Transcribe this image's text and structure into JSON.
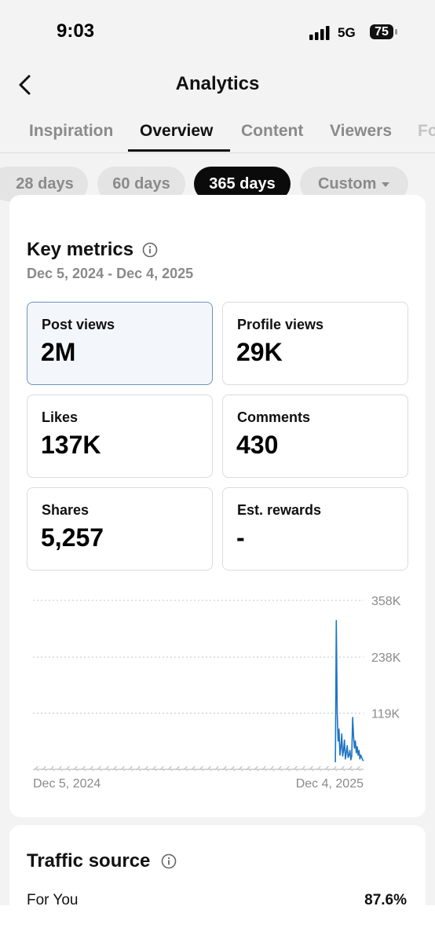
{
  "status_bar": {
    "time": "9:03",
    "network": "5G",
    "battery": "75"
  },
  "header": {
    "title": "Analytics"
  },
  "tabs": [
    "Inspiration",
    "Overview",
    "Content",
    "Viewers",
    "Followers"
  ],
  "date_ranges": [
    "28 days",
    "60 days",
    "365 days",
    "Custom"
  ],
  "key_metrics": {
    "title": "Key metrics",
    "period": "Dec 5, 2024 - Dec 4, 2025",
    "cards": [
      {
        "label": "Post views",
        "value": "2M"
      },
      {
        "label": "Profile views",
        "value": "29K"
      },
      {
        "label": "Likes",
        "value": "137K"
      },
      {
        "label": "Comments",
        "value": "430"
      },
      {
        "label": "Shares",
        "value": "5,257"
      },
      {
        "label": "Est. rewards",
        "value": "-"
      }
    ]
  },
  "chart_data": {
    "type": "line",
    "color": "#1f74c4",
    "grid": true,
    "ylim": [
      0,
      358000
    ],
    "yticks": [
      {
        "value": 119000,
        "label": "119K"
      },
      {
        "value": 238000,
        "label": "238K"
      },
      {
        "value": 358000,
        "label": "358K"
      }
    ],
    "categories": [
      "Dec 5, 2024",
      null,
      null,
      null,
      null,
      null,
      null,
      null,
      null,
      null,
      null,
      null,
      null,
      null,
      null,
      null,
      null,
      null,
      null,
      null,
      null,
      null,
      null,
      null,
      null,
      null,
      null,
      null,
      null,
      null,
      null,
      null,
      null,
      null,
      null,
      null,
      null,
      null,
      null,
      null,
      null,
      null,
      null,
      null,
      null,
      null,
      null,
      null,
      null,
      null,
      null,
      null,
      null,
      null,
      null,
      null,
      null,
      null,
      null,
      null,
      null,
      null,
      null,
      null,
      null,
      null,
      null,
      null,
      null,
      null,
      null,
      null,
      null,
      null,
      null,
      null,
      null,
      null,
      null,
      null,
      null,
      null,
      null,
      null,
      null,
      null,
      null,
      null,
      null,
      null,
      null,
      null,
      null,
      null,
      null,
      null,
      null,
      null,
      null,
      null,
      null,
      null,
      null,
      null,
      null,
      null,
      null,
      null,
      null,
      null,
      null,
      null,
      null,
      null,
      null,
      null,
      null,
      null,
      null,
      null,
      null,
      null,
      null,
      null,
      null,
      null,
      null,
      null,
      null,
      null,
      null,
      null,
      null,
      null,
      null,
      null,
      null,
      null,
      null,
      null,
      null,
      null,
      null,
      null,
      null,
      null,
      null,
      null,
      null,
      null,
      null,
      null,
      null,
      null,
      null,
      null,
      null,
      null,
      null,
      null,
      null,
      null,
      null,
      null,
      null,
      null,
      null,
      null,
      null,
      null,
      null,
      null,
      null,
      null,
      null,
      null,
      null,
      null,
      null,
      null,
      null,
      null,
      null,
      null,
      null,
      null,
      null,
      null,
      null,
      null,
      null,
      null,
      null,
      null,
      null,
      null,
      null,
      null,
      null,
      null,
      null,
      null,
      null,
      null,
      null,
      null,
      null,
      null,
      null,
      null,
      null,
      null,
      null,
      null,
      null,
      null,
      null,
      null,
      null,
      null,
      null,
      null,
      null,
      null,
      null,
      null,
      null,
      null,
      null,
      null,
      null,
      null,
      null,
      null,
      null,
      null,
      null,
      null,
      null,
      null,
      null,
      null,
      null,
      null,
      null,
      null,
      null,
      null,
      null,
      null,
      null,
      null,
      null,
      null,
      null,
      null,
      null,
      null,
      null,
      null,
      null,
      null,
      null,
      null,
      null,
      null,
      null,
      null,
      null,
      null,
      null,
      null,
      null,
      null,
      null,
      null,
      null,
      null,
      null,
      null,
      null,
      null,
      null,
      null,
      null,
      null,
      null,
      null,
      null,
      null,
      null,
      null,
      null,
      null,
      null,
      null,
      null,
      null,
      null,
      null,
      null,
      null,
      null,
      null,
      null,
      null,
      null,
      null,
      null,
      null,
      null,
      null,
      null,
      null,
      null,
      null,
      null,
      null,
      null,
      null,
      null,
      null,
      null,
      null,
      null,
      null,
      null,
      null,
      null,
      null,
      null,
      null,
      null,
      null,
      null,
      null,
      null,
      null,
      null,
      null,
      null,
      null,
      null,
      null,
      null,
      null,
      null,
      null,
      null,
      null,
      null,
      null,
      null,
      null,
      null,
      null,
      null,
      null,
      null,
      null,
      null,
      null,
      null,
      null,
      "Dec 4, 2025"
    ],
    "values": [
      null,
      null,
      null,
      null,
      null,
      null,
      null,
      null,
      null,
      null,
      null,
      null,
      null,
      null,
      null,
      null,
      null,
      null,
      null,
      null,
      null,
      null,
      null,
      null,
      null,
      null,
      null,
      null,
      null,
      null,
      null,
      null,
      null,
      null,
      null,
      null,
      null,
      null,
      null,
      null,
      null,
      null,
      null,
      null,
      null,
      null,
      null,
      null,
      null,
      null,
      null,
      null,
      null,
      null,
      null,
      null,
      null,
      null,
      null,
      null,
      null,
      null,
      null,
      null,
      null,
      null,
      null,
      null,
      null,
      null,
      null,
      null,
      null,
      null,
      null,
      null,
      null,
      null,
      null,
      null,
      null,
      null,
      null,
      null,
      null,
      null,
      null,
      null,
      null,
      null,
      null,
      null,
      null,
      null,
      null,
      null,
      null,
      null,
      null,
      null,
      null,
      null,
      null,
      null,
      null,
      null,
      null,
      null,
      null,
      null,
      null,
      null,
      null,
      null,
      null,
      null,
      null,
      null,
      null,
      null,
      null,
      null,
      null,
      null,
      null,
      null,
      null,
      null,
      null,
      null,
      null,
      null,
      null,
      null,
      null,
      null,
      null,
      null,
      null,
      null,
      null,
      null,
      null,
      null,
      null,
      null,
      null,
      null,
      null,
      null,
      null,
      null,
      null,
      null,
      null,
      null,
      null,
      null,
      null,
      null,
      null,
      null,
      null,
      null,
      null,
      null,
      null,
      null,
      null,
      null,
      null,
      null,
      null,
      null,
      null,
      null,
      null,
      null,
      null,
      null,
      null,
      null,
      null,
      null,
      null,
      null,
      null,
      null,
      null,
      null,
      null,
      null,
      null,
      null,
      null,
      null,
      null,
      null,
      null,
      null,
      null,
      null,
      null,
      null,
      null,
      null,
      null,
      null,
      null,
      null,
      null,
      null,
      null,
      null,
      null,
      null,
      null,
      null,
      null,
      null,
      null,
      null,
      null,
      null,
      null,
      null,
      null,
      null,
      null,
      null,
      null,
      null,
      null,
      null,
      null,
      null,
      null,
      null,
      null,
      null,
      null,
      null,
      null,
      null,
      null,
      null,
      null,
      null,
      null,
      null,
      null,
      null,
      null,
      null,
      null,
      null,
      null,
      null,
      null,
      null,
      null,
      null,
      null,
      null,
      null,
      null,
      null,
      null,
      null,
      null,
      null,
      null,
      null,
      null,
      null,
      null,
      null,
      null,
      null,
      null,
      null,
      null,
      null,
      null,
      null,
      null,
      null,
      null,
      null,
      null,
      null,
      null,
      null,
      null,
      null,
      null,
      null,
      null,
      null,
      null,
      null,
      null,
      null,
      null,
      null,
      null,
      null,
      null,
      null,
      null,
      null,
      null,
      null,
      null,
      null,
      null,
      null,
      null,
      null,
      null,
      null,
      null,
      null,
      null,
      null,
      null,
      null,
      null,
      null,
      null,
      null,
      null,
      null,
      15000,
      315000,
      120000,
      60000,
      85000,
      30000,
      45000,
      75000,
      28000,
      40000,
      62000,
      22000,
      35000,
      50000,
      25000,
      30000,
      40000,
      20000,
      28000,
      110000,
      70000,
      45000,
      60000,
      35000,
      48000,
      30000,
      40000,
      22000,
      30000,
      25000,
      20000,
      18000
    ]
  },
  "traffic_source": {
    "title": "Traffic source",
    "rows": [
      {
        "label": "For You",
        "value": "87.6%"
      }
    ]
  }
}
